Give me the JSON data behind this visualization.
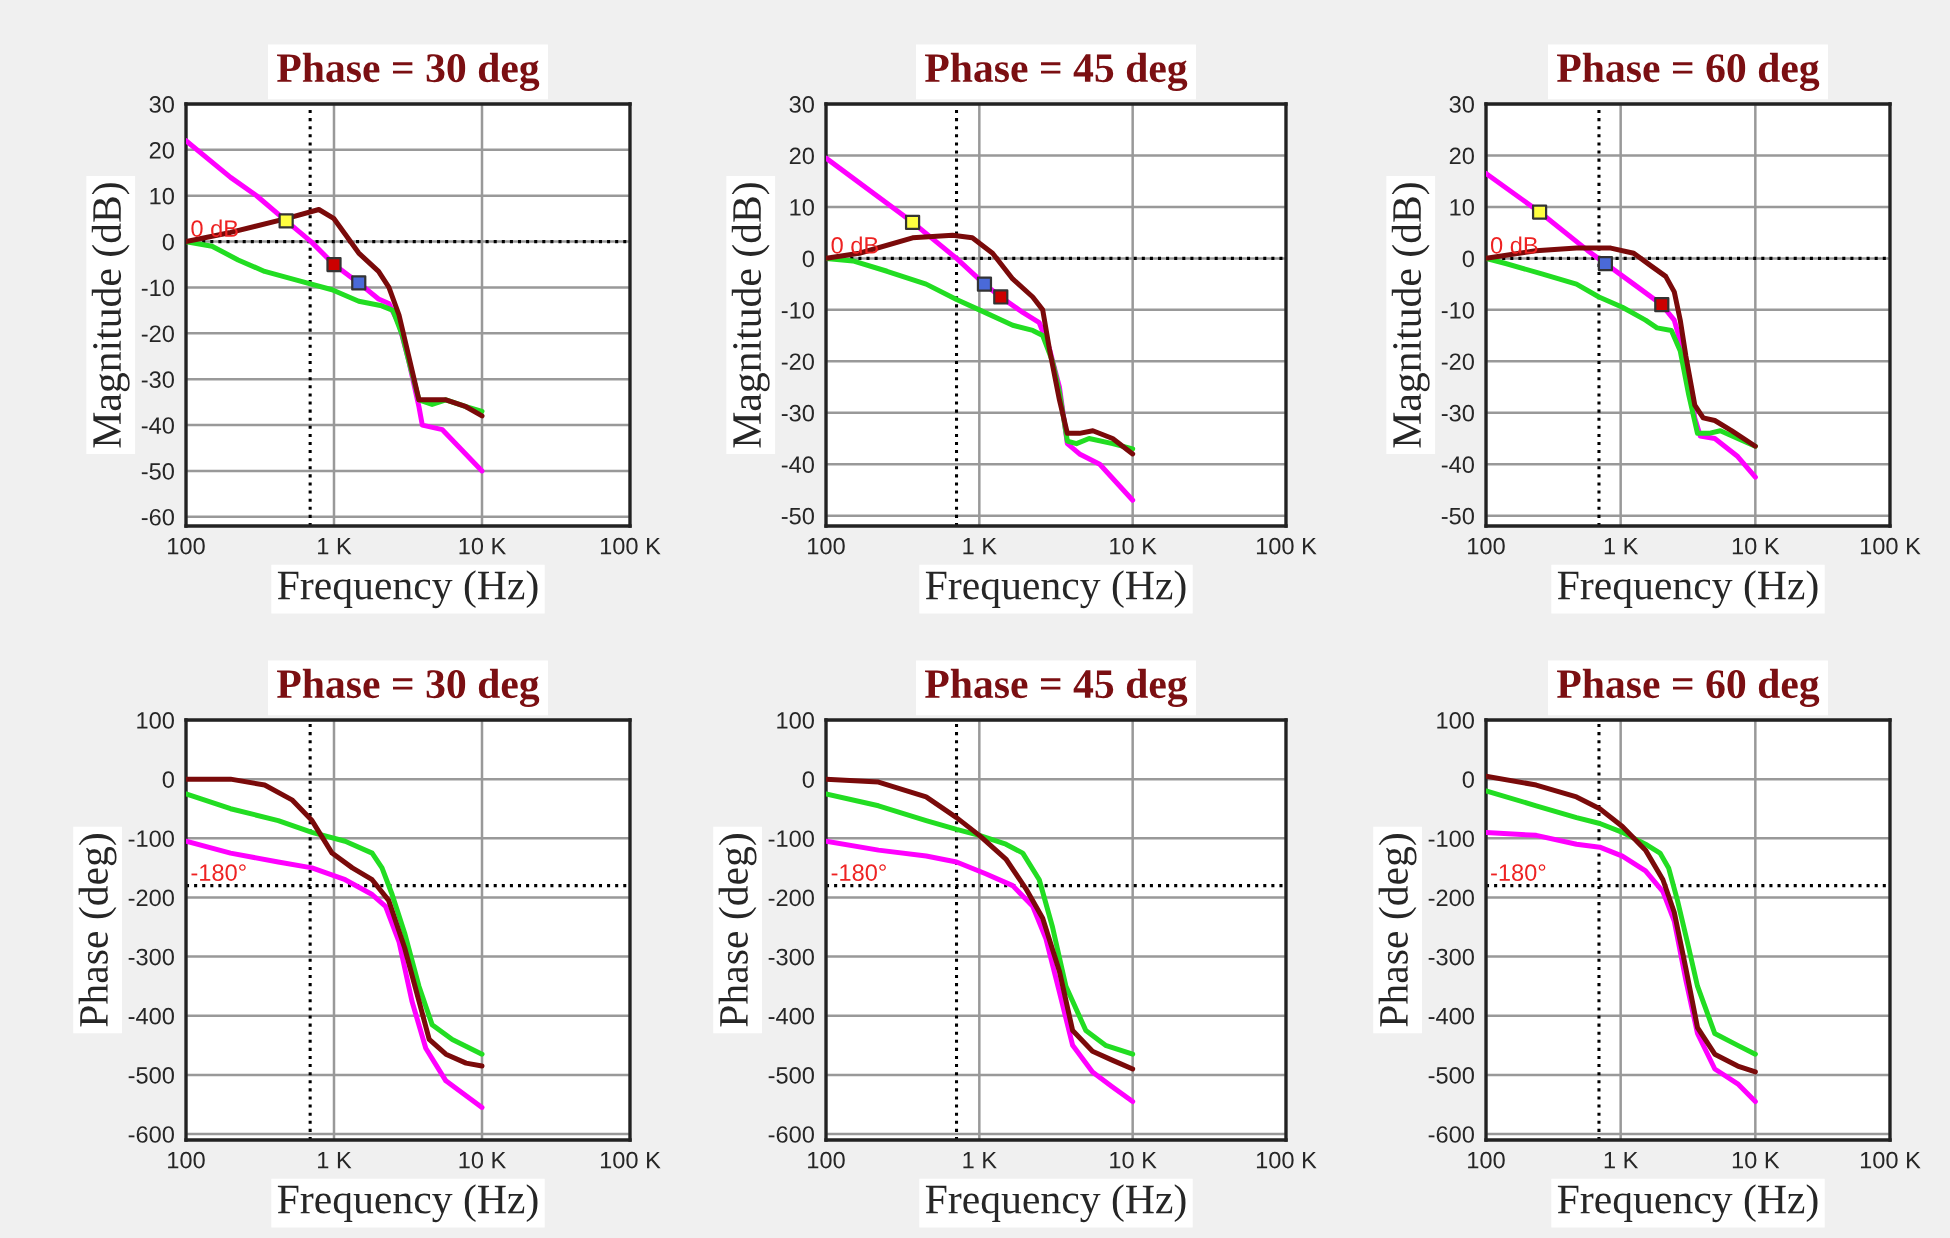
{
  "chart_data": [
    {
      "type": "line",
      "title": "Phase = 30 deg",
      "xlabel": "Frequency (Hz)",
      "ylabel": "Magnitude (dB)",
      "log": "x",
      "grid": true,
      "legend": false,
      "xlim": [
        100,
        100000
      ],
      "xticks": [
        {
          "value": 100,
          "label": "100"
        },
        {
          "value": 1000,
          "label": "1 K"
        },
        {
          "value": 10000,
          "label": "10 K"
        },
        {
          "value": 100000,
          "label": "100 K"
        }
      ],
      "ylim": [
        -62,
        30
      ],
      "yticks": [
        30,
        20,
        10,
        0,
        -10,
        -20,
        -30,
        -40,
        -50,
        -60
      ],
      "ref_lines": [
        {
          "axis": "y",
          "value": 0,
          "label": "0 dB",
          "color": "#000000",
          "line_style": "dotted"
        },
        {
          "axis": "x",
          "value": 690,
          "label": null,
          "color": "#000000",
          "line_style": "dotted"
        }
      ],
      "series": [
        {
          "color": "#ff00ff",
          "x": [
            100,
            200,
            300,
            475,
            700,
            1000,
            1470,
            2000,
            2350,
            2750,
            3200,
            3750,
            3950,
            5400,
            10000
          ],
          "values": [
            22,
            14,
            10,
            4.5,
            0,
            -5,
            -9,
            -12.5,
            -13.5,
            -18,
            -26,
            -36,
            -40,
            -41,
            -50
          ]
        },
        {
          "color": "#22dd22",
          "x": [
            100,
            150,
            225,
            340,
            575,
            970,
            1470,
            2100,
            2500,
            2900,
            3200,
            3750,
            4600,
            5700,
            7800,
            10000
          ],
          "values": [
            0,
            -1,
            -4,
            -6.5,
            -8.5,
            -10.5,
            -13,
            -14,
            -15,
            -20.5,
            -26,
            -34.5,
            -35.5,
            -34.5,
            -36,
            -37
          ]
        },
        {
          "color": "#7a0a0a",
          "x": [
            100,
            200,
            475,
            790,
            1000,
            1470,
            2000,
            2350,
            2750,
            3200,
            3750,
            4600,
            5700,
            7800,
            10000
          ],
          "values": [
            0,
            2,
            5,
            7,
            5,
            -2.5,
            -6.5,
            -10,
            -16,
            -25,
            -34.5,
            -34.5,
            -34.5,
            -36,
            -38
          ]
        },
        {
          "type": "scatter",
          "marker": "square",
          "x": [
            475,
            1000,
            1470
          ],
          "values": [
            4.5,
            -5,
            -9
          ],
          "colors": [
            "#ffff40",
            "#cc0000",
            "#4a6ad8"
          ]
        }
      ]
    },
    {
      "type": "line",
      "title": "Phase = 45 deg",
      "xlabel": "Frequency (Hz)",
      "ylabel": "Magnitude (dB)",
      "log": "x",
      "grid": true,
      "legend": false,
      "xlim": [
        100,
        100000
      ],
      "xticks": [
        {
          "value": 100,
          "label": "100"
        },
        {
          "value": 1000,
          "label": "1 K"
        },
        {
          "value": 10000,
          "label": "10 K"
        },
        {
          "value": 100000,
          "label": "100 K"
        }
      ],
      "ylim": [
        -52,
        30
      ],
      "yticks": [
        30,
        20,
        10,
        0,
        -10,
        -20,
        -30,
        -40,
        -50
      ],
      "ref_lines": [
        {
          "axis": "y",
          "value": 0,
          "label": "0 dB",
          "color": "#000000",
          "line_style": "dotted"
        },
        {
          "axis": "x",
          "value": 710,
          "label": null,
          "color": "#000000",
          "line_style": "dotted"
        }
      ],
      "series": [
        {
          "color": "#ff00ff",
          "x": [
            100,
            367,
            710,
            1080,
            1380,
            1920,
            2460,
            2860,
            3330,
            3750,
            4500,
            6100,
            10000
          ],
          "values": [
            19.5,
            7,
            0,
            -5,
            -7.5,
            -10.5,
            -12.5,
            -17.5,
            -25,
            -36,
            -38,
            -40,
            -47
          ]
        },
        {
          "color": "#22dd22",
          "x": [
            100,
            150,
            250,
            450,
            710,
            1000,
            1650,
            2230,
            2590,
            3000,
            3330,
            3750,
            4300,
            5200,
            7400,
            10000
          ],
          "values": [
            0,
            -0.5,
            -2.5,
            -5,
            -8,
            -10,
            -13,
            -14,
            -15,
            -20,
            -26,
            -35.5,
            -36,
            -35,
            -36,
            -37
          ]
        },
        {
          "color": "#7a0a0a",
          "x": [
            100,
            165,
            367,
            670,
            900,
            1220,
            1650,
            2230,
            2590,
            2860,
            3330,
            3750,
            4500,
            5500,
            7400,
            10000
          ],
          "values": [
            0,
            1,
            4,
            4.5,
            4,
            1,
            -4,
            -7.5,
            -10,
            -17.5,
            -27.5,
            -34,
            -34,
            -33.5,
            -35,
            -38
          ]
        },
        {
          "type": "scatter",
          "marker": "square",
          "x": [
            367,
            1080,
            1380
          ],
          "values": [
            7,
            -5,
            -7.5
          ],
          "colors": [
            "#ffff40",
            "#4a6ad8",
            "#cc0000"
          ]
        }
      ]
    },
    {
      "type": "line",
      "title": "Phase = 60 deg",
      "xlabel": "Frequency (Hz)",
      "ylabel": "Magnitude (dB)",
      "log": "x",
      "grid": true,
      "legend": false,
      "xlim": [
        100,
        100000
      ],
      "xticks": [
        {
          "value": 100,
          "label": "100"
        },
        {
          "value": 1000,
          "label": "1 K"
        },
        {
          "value": 10000,
          "label": "10 K"
        },
        {
          "value": 100000,
          "label": "100 K"
        }
      ],
      "ylim": [
        -52,
        30
      ],
      "yticks": [
        30,
        20,
        10,
        0,
        -10,
        -20,
        -30,
        -40,
        -50
      ],
      "ref_lines": [
        {
          "axis": "y",
          "value": 0,
          "label": "0 dB",
          "color": "#000000",
          "line_style": "dotted"
        },
        {
          "axis": "x",
          "value": 690,
          "label": null,
          "color": "#000000",
          "line_style": "dotted"
        }
      ],
      "series": [
        {
          "color": "#ff00ff",
          "x": [
            100,
            250,
            570,
            770,
            1250,
            2020,
            2500,
            2900,
            3200,
            3550,
            3900,
            5000,
            7400,
            10000
          ],
          "values": [
            16.5,
            9,
            1.5,
            -1,
            -5,
            -9,
            -12,
            -18,
            -24,
            -31,
            -34.5,
            -35,
            -38.5,
            -42.5
          ]
        },
        {
          "color": "#22dd22",
          "x": [
            100,
            140,
            260,
            470,
            690,
            1030,
            1530,
            1860,
            2380,
            2770,
            3200,
            3720,
            4530,
            5500,
            7400,
            10000
          ],
          "values": [
            0,
            -1,
            -3,
            -5,
            -7.5,
            -9.5,
            -12,
            -13.5,
            -14,
            -18,
            -26.5,
            -34,
            -34,
            -33.5,
            -35,
            -36.5
          ]
        },
        {
          "color": "#7a0a0a",
          "x": [
            100,
            235,
            470,
            845,
            1250,
            1690,
            2160,
            2500,
            2770,
            3050,
            3550,
            4100,
            5000,
            6700,
            10000
          ],
          "values": [
            0,
            1.5,
            2,
            2,
            1,
            -1.5,
            -3.5,
            -6.5,
            -12,
            -19,
            -28.5,
            -31,
            -31.5,
            -33.5,
            -36.5
          ]
        },
        {
          "type": "scatter",
          "marker": "square",
          "x": [
            250,
            770,
            2020
          ],
          "values": [
            9,
            -1,
            -9
          ],
          "colors": [
            "#ffff40",
            "#4a6ad8",
            "#cc0000"
          ]
        }
      ]
    },
    {
      "type": "line",
      "title": "Phase = 30 deg",
      "xlabel": "Frequency (Hz)",
      "ylabel": "Phase (deg)",
      "log": "x",
      "grid": true,
      "legend": false,
      "xlim": [
        100,
        100000
      ],
      "xticks": [
        {
          "value": 100,
          "label": "100"
        },
        {
          "value": 1000,
          "label": "1 K"
        },
        {
          "value": 10000,
          "label": "10 K"
        },
        {
          "value": 100000,
          "label": "100 K"
        }
      ],
      "ylim": [
        -610,
        100
      ],
      "yticks": [
        100,
        0,
        -100,
        -200,
        -300,
        -400,
        -500,
        -600
      ],
      "ref_lines": [
        {
          "axis": "y",
          "value": -180,
          "label": "-180°",
          "color": "#000000",
          "line_style": "dotted"
        },
        {
          "axis": "x",
          "value": 690,
          "label": null,
          "color": "#000000",
          "line_style": "dotted"
        }
      ],
      "series": [
        {
          "color": "#ff00ff",
          "x": [
            100,
            200,
            420,
            710,
            1190,
            1810,
            2230,
            2750,
            3360,
            4170,
            5700,
            10000
          ],
          "values": [
            -105,
            -125,
            -140,
            -150,
            -170,
            -195,
            -215,
            -275,
            -375,
            -455,
            -510,
            -555
          ]
        },
        {
          "color": "#22dd22",
          "x": [
            100,
            200,
            420,
            710,
            1190,
            1810,
            2110,
            2470,
            3000,
            3750,
            4600,
            6300,
            10000
          ],
          "values": [
            -25,
            -50,
            -70,
            -90,
            -105,
            -125,
            -150,
            -195,
            -260,
            -350,
            -415,
            -440,
            -465
          ]
        },
        {
          "color": "#7a0a0a",
          "x": [
            100,
            200,
            340,
            520,
            710,
            970,
            1330,
            1810,
            2340,
            3000,
            3750,
            4400,
            5700,
            7800,
            10000
          ],
          "values": [
            0,
            0,
            -10,
            -35,
            -70,
            -125,
            -150,
            -170,
            -205,
            -285,
            -375,
            -440,
            -465,
            -480,
            -485
          ]
        }
      ]
    },
    {
      "type": "line",
      "title": "Phase = 45 deg",
      "xlabel": "Frequency (Hz)",
      "ylabel": "Phase (deg)",
      "log": "x",
      "grid": true,
      "legend": false,
      "xlim": [
        100,
        100000
      ],
      "xticks": [
        {
          "value": 100,
          "label": "100"
        },
        {
          "value": 1000,
          "label": "1 K"
        },
        {
          "value": 10000,
          "label": "10 K"
        },
        {
          "value": 100000,
          "label": "100 K"
        }
      ],
      "ylim": [
        -610,
        100
      ],
      "yticks": [
        100,
        0,
        -100,
        -200,
        -300,
        -400,
        -500,
        -600
      ],
      "ref_lines": [
        {
          "axis": "y",
          "value": -180,
          "label": "-180°",
          "color": "#000000",
          "line_style": "dotted"
        },
        {
          "axis": "x",
          "value": 710,
          "label": null,
          "color": "#000000",
          "line_style": "dotted"
        }
      ],
      "series": [
        {
          "color": "#ff00ff",
          "x": [
            100,
            220,
            450,
            710,
            1100,
            1650,
            2230,
            2720,
            3330,
            4060,
            5470,
            7350,
            10000
          ],
          "values": [
            -105,
            -120,
            -130,
            -140,
            -160,
            -180,
            -215,
            -270,
            -360,
            -450,
            -495,
            -520,
            -545
          ]
        },
        {
          "color": "#22dd22",
          "x": [
            100,
            220,
            450,
            710,
            1000,
            1490,
            1920,
            2460,
            3000,
            3670,
            4950,
            6650,
            10000
          ],
          "values": [
            -25,
            -45,
            -70,
            -85,
            -95,
            -110,
            -125,
            -170,
            -250,
            -350,
            -425,
            -450,
            -465
          ]
        },
        {
          "color": "#7a0a0a",
          "x": [
            100,
            220,
            450,
            710,
            1000,
            1490,
            2010,
            2590,
            3330,
            4060,
            5470,
            7350,
            10000
          ],
          "values": [
            0,
            -5,
            -30,
            -65,
            -95,
            -135,
            -185,
            -235,
            -325,
            -425,
            -460,
            -475,
            -490
          ]
        }
      ]
    },
    {
      "type": "line",
      "title": "Phase = 60 deg",
      "xlabel": "Frequency (Hz)",
      "ylabel": "Phase (deg)",
      "log": "x",
      "grid": true,
      "legend": false,
      "xlim": [
        100,
        100000
      ],
      "xticks": [
        {
          "value": 100,
          "label": "100"
        },
        {
          "value": 1000,
          "label": "1 K"
        },
        {
          "value": 10000,
          "label": "10 K"
        },
        {
          "value": 100000,
          "label": "100 K"
        }
      ],
      "ylim": [
        -610,
        100
      ],
      "yticks": [
        100,
        0,
        -100,
        -200,
        -300,
        -400,
        -500,
        -600
      ],
      "ref_lines": [
        {
          "axis": "y",
          "value": -180,
          "label": "-180°",
          "color": "#000000",
          "line_style": "dotted"
        },
        {
          "axis": "x",
          "value": 690,
          "label": null,
          "color": "#000000",
          "line_style": "dotted"
        }
      ],
      "series": [
        {
          "color": "#ff00ff",
          "x": [
            100,
            236,
            470,
            700,
            1030,
            1530,
            2060,
            2500,
            3050,
            3720,
            5000,
            7400,
            10000
          ],
          "values": [
            -90,
            -95,
            -110,
            -115,
            -130,
            -155,
            -190,
            -240,
            -340,
            -430,
            -490,
            -515,
            -545
          ]
        },
        {
          "color": "#22dd22",
          "x": [
            100,
            236,
            470,
            700,
            1030,
            1530,
            1960,
            2270,
            2640,
            3200,
            3720,
            5000,
            7400,
            10000
          ],
          "values": [
            -20,
            -45,
            -65,
            -75,
            -90,
            -110,
            -125,
            -150,
            -205,
            -285,
            -350,
            -430,
            -450,
            -465
          ]
        },
        {
          "color": "#7a0a0a",
          "x": [
            100,
            236,
            470,
            700,
            1030,
            1530,
            2060,
            2500,
            3050,
            3720,
            5000,
            7400,
            10000
          ],
          "values": [
            5,
            -10,
            -30,
            -50,
            -80,
            -120,
            -170,
            -225,
            -320,
            -420,
            -465,
            -485,
            -495
          ]
        }
      ]
    }
  ]
}
